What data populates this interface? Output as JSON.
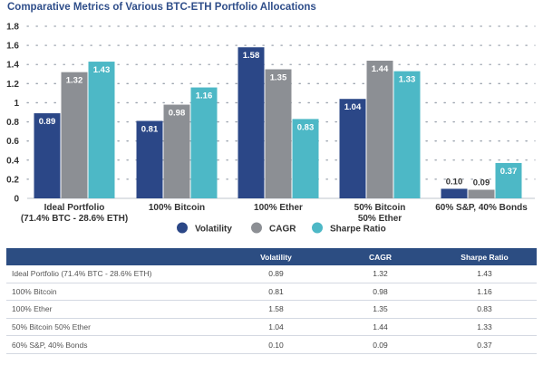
{
  "chart_data": {
    "type": "bar",
    "title": "Comparative Metrics of Various BTC-ETH Portfolio Allocations",
    "categories": [
      [
        "Ideal Portfolio",
        "(71.4% BTC - 28.6% ETH)"
      ],
      [
        "100% Bitcoin"
      ],
      [
        "100% Ether"
      ],
      [
        "50% Bitcoin",
        "50% Ether"
      ],
      [
        "60% S&P, 40% Bonds"
      ]
    ],
    "series": [
      {
        "name": "Volatility",
        "color": "#2b4787",
        "values": [
          0.89,
          0.81,
          1.58,
          1.04,
          0.1
        ]
      },
      {
        "name": "CAGR",
        "color": "#8c8f94",
        "values": [
          1.32,
          0.98,
          1.35,
          1.44,
          0.09
        ]
      },
      {
        "name": "Sharpe Ratio",
        "color": "#4db8c6",
        "values": [
          1.43,
          1.16,
          0.83,
          1.33,
          0.37
        ]
      }
    ],
    "value_labels": [
      [
        "0.89",
        "1.32",
        "1.43"
      ],
      [
        "0.81",
        "0.98",
        "1.16"
      ],
      [
        "1.58",
        "1.35",
        "0.83"
      ],
      [
        "1.04",
        "1.44",
        "1.33"
      ],
      [
        "0.10",
        "0.09",
        "0.37"
      ]
    ],
    "yticks": [
      "0",
      "0.2",
      "0.4",
      "0.6",
      "0.8",
      "1",
      "1.2",
      "1.4",
      "1.6",
      "1.8"
    ],
    "ylim": [
      0,
      1.8
    ],
    "grid": "dotted horizontal",
    "legend": "bottom-center"
  },
  "table": {
    "headers": [
      "",
      "Volatility",
      "CAGR",
      "Sharpe Ratio"
    ],
    "rows": [
      [
        "Ideal Portfolio (71.4% BTC - 28.6% ETH)",
        "0.89",
        "1.32",
        "1.43"
      ],
      [
        "100% Bitcoin",
        "0.81",
        "0.98",
        "1.16"
      ],
      [
        "100% Ether",
        "1.58",
        "1.35",
        "0.83"
      ],
      [
        "50% Bitcoin 50% Ether",
        "1.04",
        "1.44",
        "1.33"
      ],
      [
        "60% S&P, 40% Bonds",
        "0.10",
        "0.09",
        "0.37"
      ]
    ]
  }
}
